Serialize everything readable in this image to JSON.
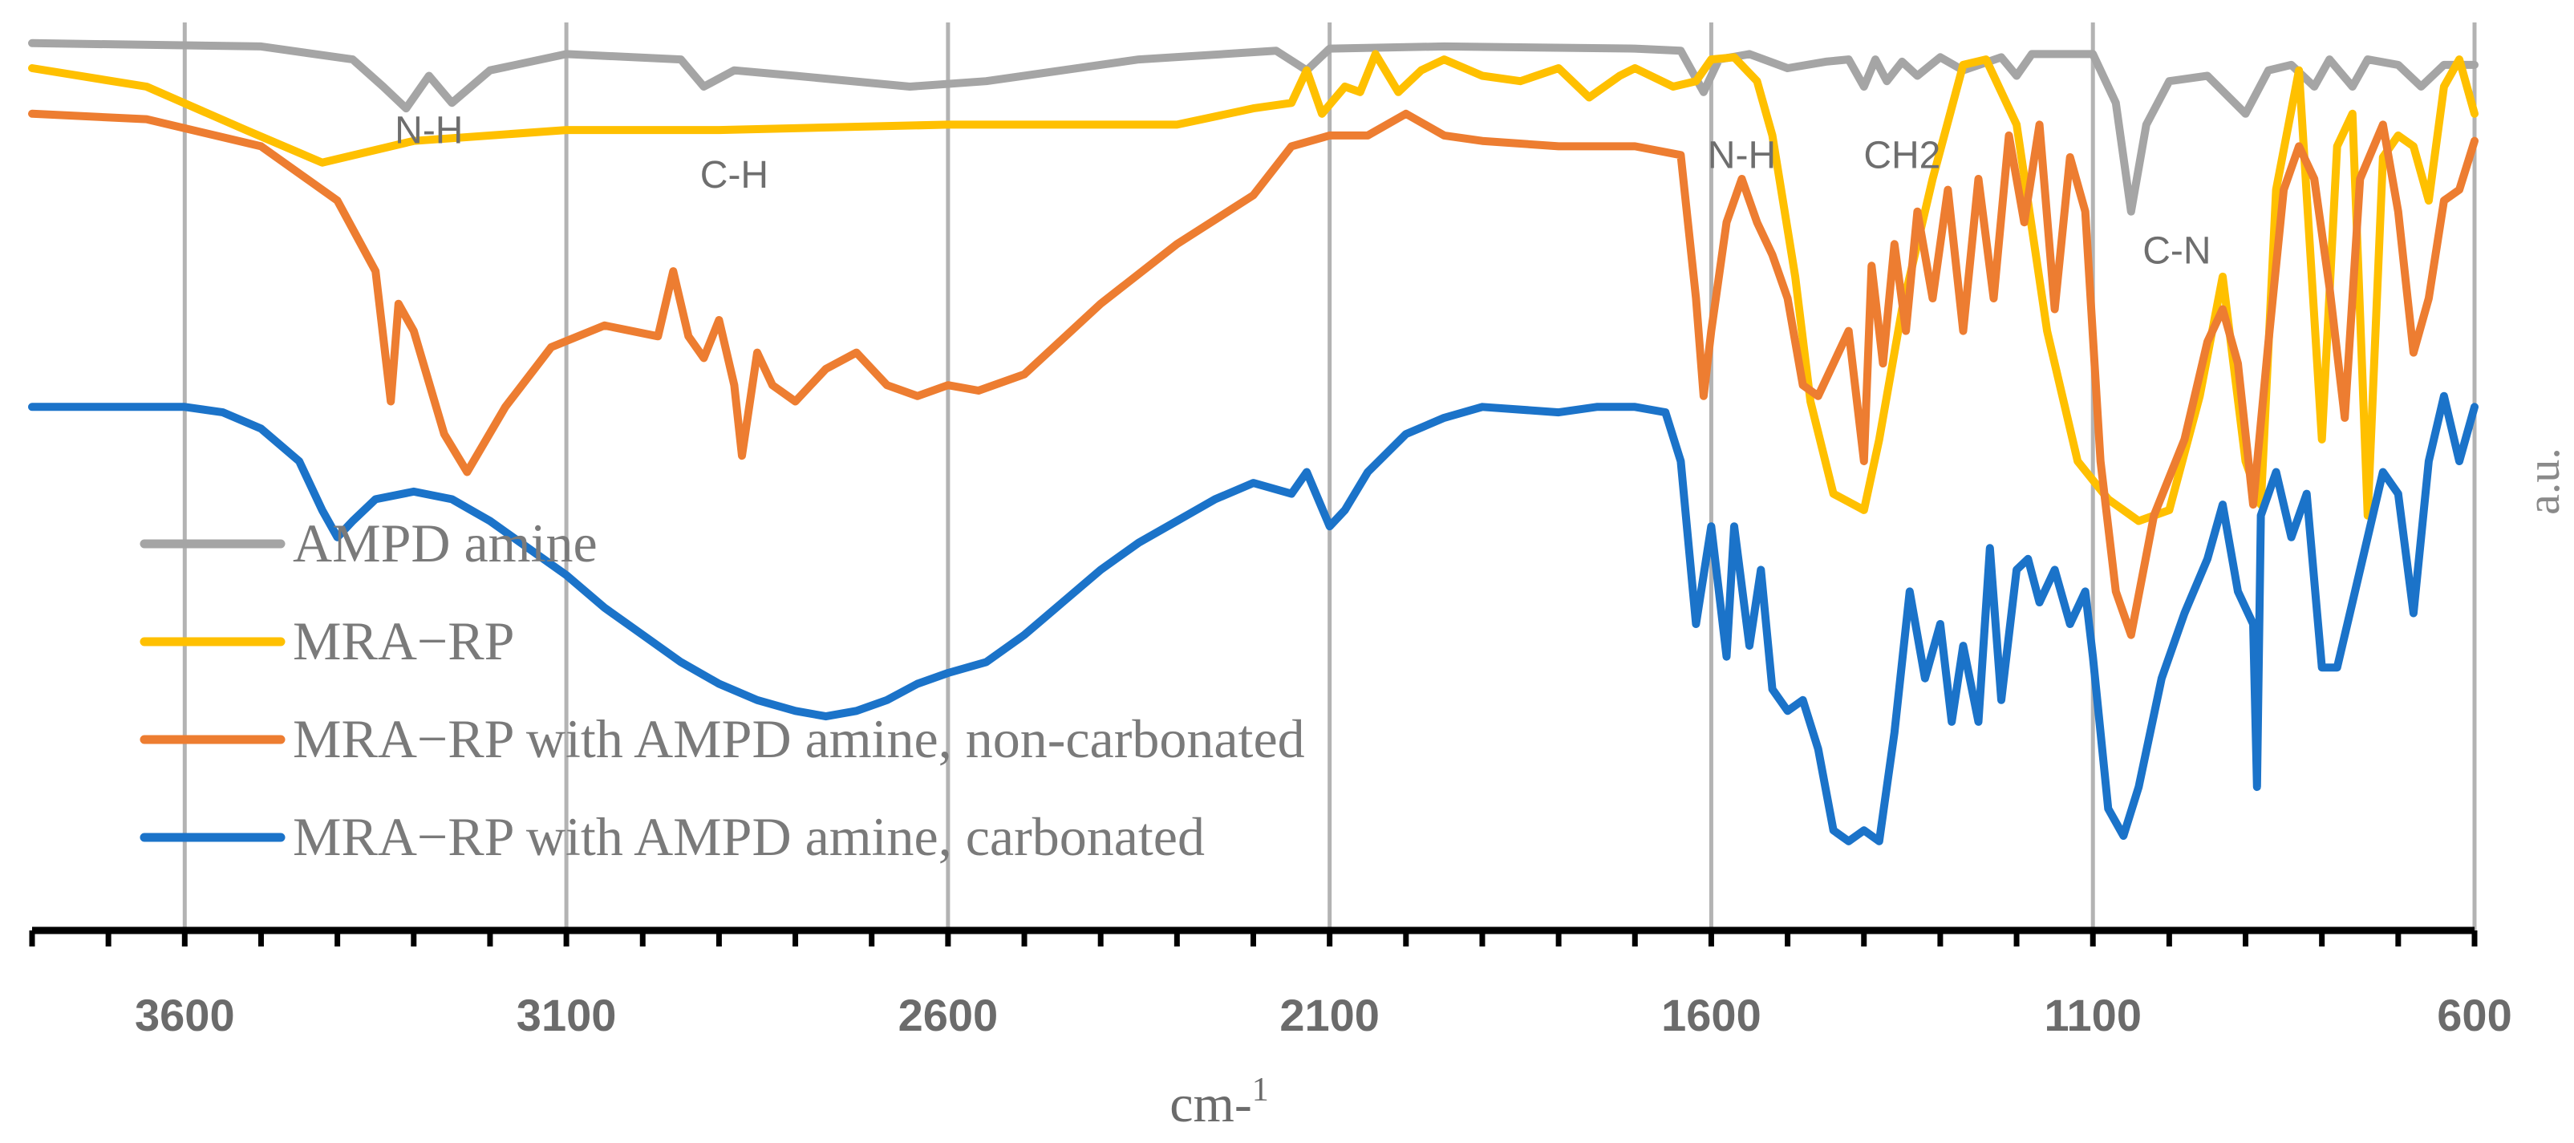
{
  "chart_data": {
    "type": "line",
    "title": "",
    "xlabel": "cm-",
    "xlabel_superscript": "1",
    "ylabel": "a.u.",
    "xlim": [
      3800,
      600
    ],
    "x_ticks": [
      3600,
      3100,
      2600,
      2100,
      1600,
      1100,
      600
    ],
    "grid": "vertical",
    "legend_position": "left-bottom",
    "annotations": [
      {
        "text": "N-H",
        "x": 3280,
        "y": 2.93
      },
      {
        "text": "C-H",
        "x": 2880,
        "y": 2.52
      },
      {
        "text": "N-H",
        "x": 1560,
        "y": 2.7
      },
      {
        "text": "CH2",
        "x": 1350,
        "y": 2.7
      },
      {
        "text": "C-N",
        "x": 990,
        "y": 1.82
      }
    ],
    "series": [
      {
        "name": "AMPD amine",
        "color": "#a5a5a5",
        "points": [
          [
            3800,
            3.85
          ],
          [
            3500,
            3.82
          ],
          [
            3380,
            3.7
          ],
          [
            3340,
            3.45
          ],
          [
            3310,
            3.25
          ],
          [
            3280,
            3.55
          ],
          [
            3250,
            3.3
          ],
          [
            3200,
            3.6
          ],
          [
            3100,
            3.75
          ],
          [
            2950,
            3.7
          ],
          [
            2920,
            3.45
          ],
          [
            2880,
            3.6
          ],
          [
            2800,
            3.55
          ],
          [
            2650,
            3.45
          ],
          [
            2550,
            3.5
          ],
          [
            2350,
            3.7
          ],
          [
            2170,
            3.78
          ],
          [
            2130,
            3.6
          ],
          [
            2100,
            3.8
          ],
          [
            1950,
            3.82
          ],
          [
            1700,
            3.8
          ],
          [
            1640,
            3.78
          ],
          [
            1610,
            3.4
          ],
          [
            1590,
            3.7
          ],
          [
            1550,
            3.75
          ],
          [
            1500,
            3.62
          ],
          [
            1450,
            3.68
          ],
          [
            1420,
            3.7
          ],
          [
            1400,
            3.45
          ],
          [
            1385,
            3.7
          ],
          [
            1370,
            3.5
          ],
          [
            1350,
            3.68
          ],
          [
            1330,
            3.55
          ],
          [
            1300,
            3.72
          ],
          [
            1270,
            3.6
          ],
          [
            1220,
            3.72
          ],
          [
            1200,
            3.55
          ],
          [
            1180,
            3.75
          ],
          [
            1100,
            3.75
          ],
          [
            1070,
            3.3
          ],
          [
            1050,
            2.3
          ],
          [
            1030,
            3.1
          ],
          [
            1000,
            3.5
          ],
          [
            950,
            3.55
          ],
          [
            900,
            3.2
          ],
          [
            870,
            3.6
          ],
          [
            840,
            3.65
          ],
          [
            810,
            3.45
          ],
          [
            790,
            3.7
          ],
          [
            760,
            3.45
          ],
          [
            740,
            3.7
          ],
          [
            700,
            3.65
          ],
          [
            670,
            3.45
          ],
          [
            640,
            3.65
          ],
          [
            600,
            3.65
          ]
        ]
      },
      {
        "name": "MRA−RP",
        "color": "#ffc000",
        "points": [
          [
            3800,
            3.62
          ],
          [
            3650,
            3.45
          ],
          [
            3520,
            3.05
          ],
          [
            3420,
            2.75
          ],
          [
            3300,
            2.95
          ],
          [
            3100,
            3.05
          ],
          [
            2900,
            3.05
          ],
          [
            2600,
            3.1
          ],
          [
            2300,
            3.1
          ],
          [
            2200,
            3.25
          ],
          [
            2150,
            3.3
          ],
          [
            2130,
            3.6
          ],
          [
            2110,
            3.2
          ],
          [
            2080,
            3.45
          ],
          [
            2060,
            3.4
          ],
          [
            2040,
            3.75
          ],
          [
            2010,
            3.4
          ],
          [
            1980,
            3.6
          ],
          [
            1950,
            3.7
          ],
          [
            1900,
            3.55
          ],
          [
            1850,
            3.5
          ],
          [
            1800,
            3.62
          ],
          [
            1760,
            3.35
          ],
          [
            1720,
            3.55
          ],
          [
            1700,
            3.62
          ],
          [
            1650,
            3.45
          ],
          [
            1620,
            3.5
          ],
          [
            1600,
            3.7
          ],
          [
            1570,
            3.72
          ],
          [
            1540,
            3.5
          ],
          [
            1520,
            3.0
          ],
          [
            1490,
            1.7
          ],
          [
            1470,
            0.55
          ],
          [
            1440,
            -0.3
          ],
          [
            1400,
            -0.45
          ],
          [
            1380,
            0.2
          ],
          [
            1350,
            1.4
          ],
          [
            1310,
            2.6
          ],
          [
            1270,
            3.65
          ],
          [
            1240,
            3.7
          ],
          [
            1200,
            3.1
          ],
          [
            1160,
            1.2
          ],
          [
            1120,
            0.0
          ],
          [
            1080,
            -0.35
          ],
          [
            1040,
            -0.55
          ],
          [
            1000,
            -0.45
          ],
          [
            960,
            0.6
          ],
          [
            930,
            1.7
          ],
          [
            900,
            0.0
          ],
          [
            880,
            -0.4
          ],
          [
            860,
            2.5
          ],
          [
            830,
            3.6
          ],
          [
            800,
            0.2
          ],
          [
            780,
            2.9
          ],
          [
            760,
            3.2
          ],
          [
            740,
            -0.5
          ],
          [
            720,
            2.8
          ],
          [
            700,
            3.0
          ],
          [
            680,
            2.9
          ],
          [
            660,
            2.4
          ],
          [
            640,
            3.45
          ],
          [
            620,
            3.7
          ],
          [
            600,
            3.2
          ]
        ]
      },
      {
        "name": "MRA−RP with AMPD amine, non-carbonated",
        "color": "#ed7d31",
        "points": [
          [
            3800,
            3.2
          ],
          [
            3650,
            3.15
          ],
          [
            3500,
            2.9
          ],
          [
            3400,
            2.4
          ],
          [
            3350,
            1.75
          ],
          [
            3330,
            0.55
          ],
          [
            3320,
            1.45
          ],
          [
            3300,
            1.2
          ],
          [
            3260,
            0.25
          ],
          [
            3230,
            -0.1
          ],
          [
            3180,
            0.5
          ],
          [
            3120,
            1.05
          ],
          [
            3050,
            1.25
          ],
          [
            2980,
            1.15
          ],
          [
            2960,
            1.75
          ],
          [
            2940,
            1.15
          ],
          [
            2920,
            0.95
          ],
          [
            2900,
            1.3
          ],
          [
            2880,
            0.7
          ],
          [
            2870,
            0.05
          ],
          [
            2850,
            1.0
          ],
          [
            2830,
            0.7
          ],
          [
            2800,
            0.55
          ],
          [
            2760,
            0.85
          ],
          [
            2720,
            1.0
          ],
          [
            2680,
            0.7
          ],
          [
            2640,
            0.6
          ],
          [
            2600,
            0.7
          ],
          [
            2560,
            0.65
          ],
          [
            2500,
            0.8
          ],
          [
            2400,
            1.45
          ],
          [
            2300,
            2.0
          ],
          [
            2200,
            2.45
          ],
          [
            2150,
            2.9
          ],
          [
            2100,
            3.0
          ],
          [
            2050,
            3.0
          ],
          [
            2000,
            3.2
          ],
          [
            1950,
            3.0
          ],
          [
            1900,
            2.95
          ],
          [
            1800,
            2.9
          ],
          [
            1700,
            2.9
          ],
          [
            1640,
            2.82
          ],
          [
            1620,
            1.5
          ],
          [
            1610,
            0.6
          ],
          [
            1600,
            1.2
          ],
          [
            1580,
            2.2
          ],
          [
            1560,
            2.6
          ],
          [
            1540,
            2.2
          ],
          [
            1520,
            1.9
          ],
          [
            1500,
            1.5
          ],
          [
            1480,
            0.7
          ],
          [
            1460,
            0.6
          ],
          [
            1440,
            0.9
          ],
          [
            1420,
            1.2
          ],
          [
            1400,
            0.0
          ],
          [
            1390,
            1.8
          ],
          [
            1375,
            0.9
          ],
          [
            1360,
            2.0
          ],
          [
            1345,
            1.2
          ],
          [
            1330,
            2.3
          ],
          [
            1310,
            1.5
          ],
          [
            1290,
            2.5
          ],
          [
            1270,
            1.2
          ],
          [
            1250,
            2.6
          ],
          [
            1230,
            1.5
          ],
          [
            1210,
            3.0
          ],
          [
            1190,
            2.2
          ],
          [
            1170,
            3.1
          ],
          [
            1150,
            1.4
          ],
          [
            1130,
            2.8
          ],
          [
            1110,
            2.3
          ],
          [
            1090,
            0.0
          ],
          [
            1070,
            -1.2
          ],
          [
            1050,
            -1.6
          ],
          [
            1020,
            -0.5
          ],
          [
            980,
            0.2
          ],
          [
            950,
            1.1
          ],
          [
            930,
            1.4
          ],
          [
            910,
            0.9
          ],
          [
            890,
            -0.4
          ],
          [
            870,
            1.1
          ],
          [
            850,
            2.5
          ],
          [
            830,
            2.9
          ],
          [
            810,
            2.6
          ],
          [
            790,
            1.6
          ],
          [
            770,
            0.4
          ],
          [
            750,
            2.6
          ],
          [
            720,
            3.1
          ],
          [
            700,
            2.3
          ],
          [
            680,
            1.0
          ],
          [
            660,
            1.5
          ],
          [
            640,
            2.4
          ],
          [
            620,
            2.5
          ],
          [
            600,
            2.95
          ]
        ]
      },
      {
        "name": "MRA−RP with AMPD amine, carbonated",
        "color": "#1b73c9",
        "points": [
          [
            3800,
            0.5
          ],
          [
            3650,
            0.5
          ],
          [
            3600,
            0.5
          ],
          [
            3550,
            0.45
          ],
          [
            3500,
            0.3
          ],
          [
            3450,
            0.0
          ],
          [
            3420,
            -0.45
          ],
          [
            3400,
            -0.7
          ],
          [
            3380,
            -0.55
          ],
          [
            3350,
            -0.35
          ],
          [
            3300,
            -0.28
          ],
          [
            3250,
            -0.35
          ],
          [
            3200,
            -0.55
          ],
          [
            3150,
            -0.8
          ],
          [
            3100,
            -1.05
          ],
          [
            3050,
            -1.35
          ],
          [
            3000,
            -1.6
          ],
          [
            2950,
            -1.85
          ],
          [
            2900,
            -2.05
          ],
          [
            2850,
            -2.2
          ],
          [
            2800,
            -2.3
          ],
          [
            2760,
            -2.35
          ],
          [
            2720,
            -2.3
          ],
          [
            2680,
            -2.2
          ],
          [
            2640,
            -2.05
          ],
          [
            2600,
            -1.95
          ],
          [
            2550,
            -1.85
          ],
          [
            2500,
            -1.6
          ],
          [
            2450,
            -1.3
          ],
          [
            2400,
            -1.0
          ],
          [
            2350,
            -0.75
          ],
          [
            2300,
            -0.55
          ],
          [
            2250,
            -0.35
          ],
          [
            2200,
            -0.2
          ],
          [
            2150,
            -0.3
          ],
          [
            2130,
            -0.1
          ],
          [
            2100,
            -0.6
          ],
          [
            2080,
            -0.45
          ],
          [
            2050,
            -0.1
          ],
          [
            2000,
            0.25
          ],
          [
            1950,
            0.4
          ],
          [
            1900,
            0.5
          ],
          [
            1800,
            0.45
          ],
          [
            1750,
            0.5
          ],
          [
            1700,
            0.5
          ],
          [
            1660,
            0.45
          ],
          [
            1640,
            0.0
          ],
          [
            1620,
            -1.5
          ],
          [
            1600,
            -0.6
          ],
          [
            1580,
            -1.8
          ],
          [
            1570,
            -0.6
          ],
          [
            1550,
            -1.7
          ],
          [
            1535,
            -1.0
          ],
          [
            1520,
            -2.1
          ],
          [
            1500,
            -2.3
          ],
          [
            1480,
            -2.2
          ],
          [
            1460,
            -2.65
          ],
          [
            1440,
            -3.4
          ],
          [
            1420,
            -3.5
          ],
          [
            1400,
            -3.4
          ],
          [
            1380,
            -3.5
          ],
          [
            1360,
            -2.5
          ],
          [
            1340,
            -1.2
          ],
          [
            1320,
            -2.0
          ],
          [
            1300,
            -1.5
          ],
          [
            1285,
            -2.4
          ],
          [
            1270,
            -1.7
          ],
          [
            1250,
            -2.4
          ],
          [
            1235,
            -0.8
          ],
          [
            1220,
            -2.2
          ],
          [
            1200,
            -1.0
          ],
          [
            1185,
            -0.9
          ],
          [
            1170,
            -1.3
          ],
          [
            1150,
            -1.0
          ],
          [
            1130,
            -1.5
          ],
          [
            1110,
            -1.2
          ],
          [
            1100,
            -1.8
          ],
          [
            1080,
            -3.2
          ],
          [
            1060,
            -3.45
          ],
          [
            1040,
            -3.0
          ],
          [
            1010,
            -2.0
          ],
          [
            980,
            -1.4
          ],
          [
            950,
            -0.9
          ],
          [
            930,
            -0.4
          ],
          [
            910,
            -1.2
          ],
          [
            890,
            -1.5
          ],
          [
            885,
            -3.0
          ],
          [
            880,
            -0.5
          ],
          [
            860,
            -0.1
          ],
          [
            840,
            -0.7
          ],
          [
            820,
            -0.3
          ],
          [
            800,
            -1.9
          ],
          [
            780,
            -1.9
          ],
          [
            760,
            -1.3
          ],
          [
            740,
            -0.7
          ],
          [
            720,
            -0.1
          ],
          [
            700,
            -0.3
          ],
          [
            680,
            -1.4
          ],
          [
            660,
            0.0
          ],
          [
            640,
            0.6
          ],
          [
            620,
            0.0
          ],
          [
            600,
            0.5
          ]
        ]
      }
    ]
  }
}
